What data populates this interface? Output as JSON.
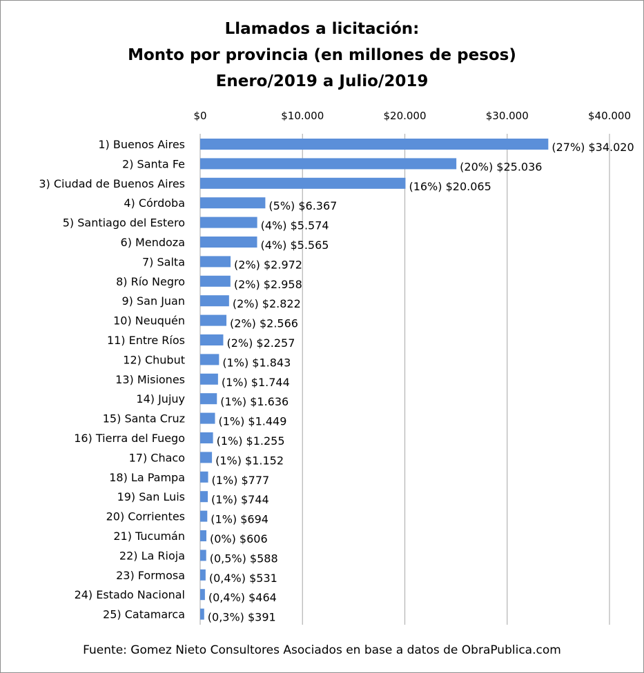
{
  "chart_data": {
    "type": "bar",
    "orientation": "horizontal",
    "title_lines": [
      "Llamados a licitación:",
      "Monto por provincia (en millones de pesos)",
      "Enero/2019 a Julio/2019"
    ],
    "xlim": [
      0,
      40000
    ],
    "x_ticks": [
      0,
      10000,
      20000,
      30000,
      40000
    ],
    "x_tick_labels": [
      "$0",
      "$10.000",
      "$20.000",
      "$30.000",
      "$40.000"
    ],
    "x_axis_position": "top",
    "grid": "vertical",
    "legend": "none",
    "bar_color": "#5b8fd9",
    "categories": [
      "1) Buenos Aires",
      "2) Santa Fe",
      "3) Ciudad de Buenos Aires",
      "4) Córdoba",
      "5) Santiago del Estero",
      "6) Mendoza",
      "7) Salta",
      "8) Río Negro",
      "9) San Juan",
      "10) Neuquén",
      "11) Entre Ríos",
      "12) Chubut",
      "13) Misiones",
      "14) Jujuy",
      "15) Santa Cruz",
      "16) Tierra del Fuego",
      "17) Chaco",
      "18) La Pampa",
      "19) San Luis",
      "20) Corrientes",
      "21) Tucumán",
      "22) La Rioja",
      "23) Formosa",
      "24) Estado Nacional",
      "25) Catamarca"
    ],
    "values": [
      34020,
      25036,
      20065,
      6367,
      5574,
      5565,
      2972,
      2958,
      2822,
      2566,
      2257,
      1843,
      1744,
      1636,
      1449,
      1255,
      1152,
      777,
      744,
      694,
      606,
      588,
      531,
      464,
      391
    ],
    "data_labels": [
      "(27%) $34.020",
      "(20%) $25.036",
      "(16%) $20.065",
      "(5%) $6.367",
      "(4%) $5.574",
      "(4%) $5.565",
      "(2%) $2.972",
      "(2%) $2.958",
      "(2%) $2.822",
      "(2%) $2.566",
      "(2%) $2.257",
      "(1%) $1.843",
      "(1%) $1.744",
      "(1%) $1.636",
      "(1%) $1.449",
      "(1%) $1.255",
      "(1%) $1.152",
      "(1%) $777",
      "(1%) $744",
      "(1%) $694",
      "(0%) $606",
      "(0,5%) $588",
      "(0,4%) $531",
      "(0,4%) $464",
      "(0,3%) $391"
    ]
  },
  "source": "Fuente: Gomez Nieto Consultores Asociados en base a datos de ObraPublica.com"
}
